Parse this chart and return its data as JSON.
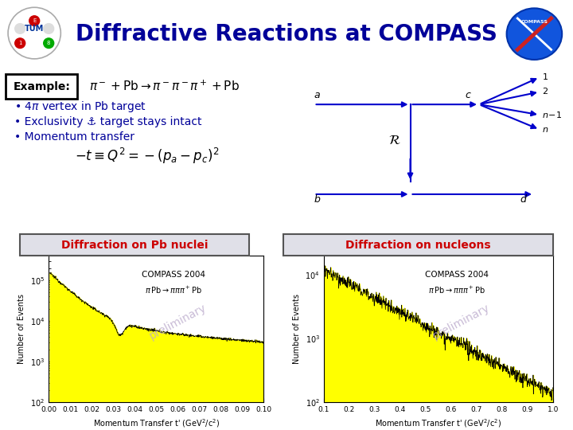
{
  "title": "Diffractive Reactions at COMPASS",
  "title_color": "#000099",
  "title_fontsize": 20,
  "bg_color": "#ffffff",
  "header_bg": "#f0f0f8",
  "header_bar_color": "#0000cc",
  "example_label": "Example:",
  "bullet1": "• 4$\\pi$ vertex in Pb target",
  "bullet2": "• Exclusivity ⚓ target stays intact",
  "bullet3": "• Momentum transfer",
  "label_pb": "Diffraction on Pb nuclei",
  "label_nuc": "Diffraction on nucleons",
  "plot1_xlabel": "Momentum Transfer t' (GeV$^2$/c$^2$)",
  "plot2_xlabel": "Momentum Transfer t' (GeV$^2$/c$^2$)",
  "plot_ylabel": "Number of Events",
  "compass_label": "COMPASS 2004",
  "preliminary": "preliminary",
  "text_color": "#000099",
  "label_box_bg": "#e0e0e8",
  "label_text_color": "#cc0000"
}
